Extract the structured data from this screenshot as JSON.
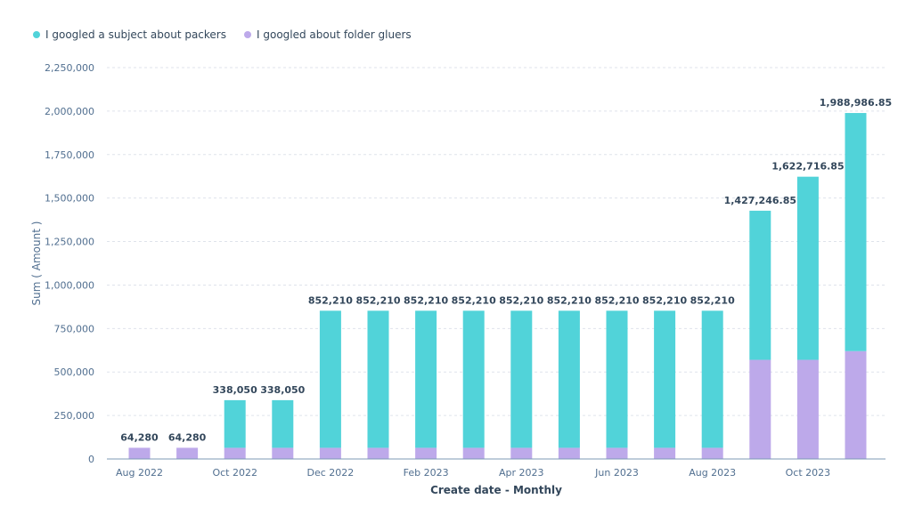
{
  "colors": {
    "teal": "#51d3d9",
    "purple": "#bda9ea",
    "grid": "#dfe3eb",
    "axis": "#7c98b6"
  },
  "chart_data": {
    "type": "bar",
    "stacked": true,
    "xlabel": "Create date - Monthly",
    "ylabel": "Sum ( Amount )",
    "ylim": [
      0,
      2250000
    ],
    "yticks": [
      0,
      250000,
      500000,
      750000,
      1000000,
      1250000,
      1500000,
      1750000,
      2000000,
      2250000
    ],
    "ytick_labels": [
      "0",
      "250,000",
      "500,000",
      "750,000",
      "1,000,000",
      "1,250,000",
      "1,500,000",
      "1,750,000",
      "2,000,000",
      "2,250,000"
    ],
    "grid": true,
    "legend": "top-left",
    "categories": [
      "Aug 2022",
      "Sep 2022",
      "Oct 2022",
      "Nov 2022",
      "Dec 2022",
      "Jan 2023",
      "Feb 2023",
      "Mar 2023",
      "Apr 2023",
      "May 2023",
      "Jun 2023",
      "Jul 2023",
      "Aug 2023",
      "Sep 2023",
      "Oct 2023",
      "Nov 2023"
    ],
    "xtick_labels": [
      "Aug 2022",
      "",
      "Oct 2022",
      "",
      "Dec 2022",
      "",
      "Feb 2023",
      "",
      "Apr 2023",
      "",
      "Jun 2023",
      "",
      "Aug 2023",
      "",
      "Oct 2023",
      ""
    ],
    "series": [
      {
        "name": "I googled about folder gluers",
        "color": "#bda9ea",
        "values": [
          64280,
          64280,
          64280,
          64280,
          64280,
          64280,
          64280,
          64280,
          64280,
          64280,
          64280,
          64280,
          64280,
          570000,
          570000,
          620000
        ]
      },
      {
        "name": "I googled a subject about packers",
        "color": "#51d3d9",
        "values": [
          0,
          0,
          273770,
          273770,
          787930,
          787930,
          787930,
          787930,
          787930,
          787930,
          787930,
          787930,
          787930,
          857246.85,
          1052716.85,
          1368986.85
        ]
      }
    ],
    "total_labels": [
      "64,280",
      "64,280",
      "338,050",
      "338,050",
      "852,210",
      "852,210",
      "852,210",
      "852,210",
      "852,210",
      "852,210",
      "852,210",
      "852,210",
      "852,210",
      "1,427,246.85",
      "1,622,716.85",
      "1,988,986.85"
    ]
  },
  "legend_items": [
    {
      "label": "I googled a subject about packers",
      "color": "#51d3d9"
    },
    {
      "label": "I googled about folder gluers",
      "color": "#bda9ea"
    }
  ]
}
